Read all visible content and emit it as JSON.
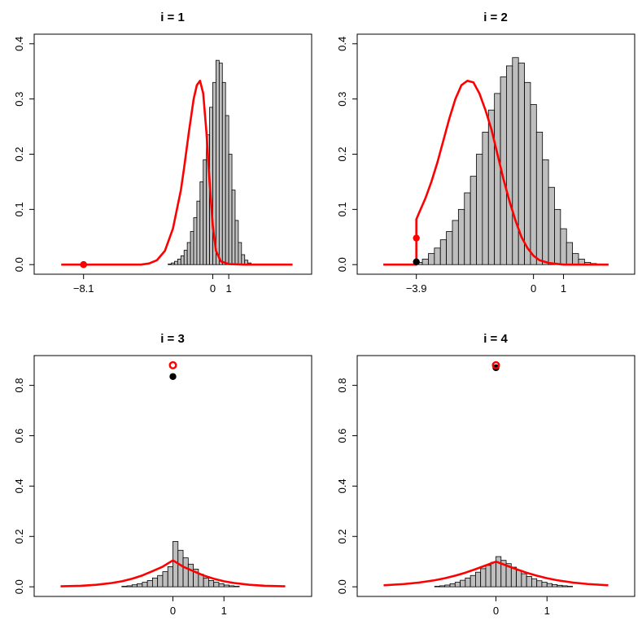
{
  "chart_data": [
    {
      "type": "bar",
      "title": "i = 1",
      "xlabel": "",
      "ylabel": "",
      "xlim": [
        -10.5,
        5.5
      ],
      "ylim": [
        0,
        0.4
      ],
      "yticks": [
        "0.0",
        "0.1",
        "0.2",
        "0.3",
        "0.4"
      ],
      "xticks": [
        {
          "value": -8.1,
          "label": "−8.1"
        },
        {
          "value": 0,
          "label": "0"
        },
        {
          "value": 1,
          "label": "1"
        }
      ],
      "histogram": {
        "start": -2.8,
        "binwidth": 0.2,
        "values": [
          0.001,
          0.003,
          0.006,
          0.01,
          0.016,
          0.026,
          0.04,
          0.06,
          0.085,
          0.115,
          0.15,
          0.19,
          0.235,
          0.285,
          0.33,
          0.37,
          0.365,
          0.33,
          0.27,
          0.2,
          0.135,
          0.08,
          0.04,
          0.018,
          0.008,
          0.003,
          0.001
        ]
      },
      "density_curve": {
        "x": [
          -9.5,
          -8.5,
          -7.5,
          -6.5,
          -5.5,
          -5.0,
          -4.5,
          -4.0,
          -3.5,
          -3.0,
          -2.5,
          -2.0,
          -1.8,
          -1.5,
          -1.2,
          -1.0,
          -0.8,
          -0.6,
          -0.4,
          -0.2,
          0.0,
          0.2,
          0.5,
          1.0,
          2.0,
          3.0,
          4.0,
          5.0
        ],
        "y": [
          0.0,
          0.0,
          0.0,
          0.0,
          0.0,
          0.0,
          0.0,
          0.002,
          0.008,
          0.025,
          0.065,
          0.135,
          0.175,
          0.24,
          0.3,
          0.325,
          0.333,
          0.31,
          0.24,
          0.15,
          0.07,
          0.025,
          0.006,
          0.001,
          0.0,
          0.0,
          0.0,
          0.0
        ],
        "color": "#ff0000"
      },
      "points": [
        {
          "x": -8.1,
          "y": 0.0,
          "color": "#000000",
          "style": "filled"
        },
        {
          "x": -8.1,
          "y": 0.0,
          "color": "#ff0000",
          "style": "filled"
        }
      ]
    },
    {
      "type": "bar",
      "title": "i = 2",
      "xlabel": "",
      "ylabel": "",
      "xlim": [
        -5.5,
        3.0
      ],
      "ylim": [
        0,
        0.4
      ],
      "yticks": [
        "0.0",
        "0.1",
        "0.2",
        "0.3",
        "0.4"
      ],
      "xticks": [
        {
          "value": -3.9,
          "label": "−3.9"
        },
        {
          "value": 0,
          "label": "0"
        },
        {
          "value": 1,
          "label": "1"
        }
      ],
      "histogram": {
        "start": -3.9,
        "binwidth": 0.2,
        "values": [
          0.004,
          0.01,
          0.02,
          0.03,
          0.045,
          0.06,
          0.08,
          0.1,
          0.13,
          0.16,
          0.2,
          0.24,
          0.28,
          0.31,
          0.34,
          0.36,
          0.375,
          0.365,
          0.33,
          0.29,
          0.24,
          0.19,
          0.14,
          0.1,
          0.065,
          0.04,
          0.02,
          0.01,
          0.004,
          0.002
        ]
      },
      "density_curve": {
        "x": [
          -5.0,
          -4.5,
          -4.2,
          -3.91,
          -3.9,
          -3.9,
          -3.8,
          -3.6,
          -3.4,
          -3.2,
          -3.0,
          -2.8,
          -2.6,
          -2.4,
          -2.2,
          -2.0,
          -1.8,
          -1.6,
          -1.4,
          -1.2,
          -1.0,
          -0.8,
          -0.6,
          -0.4,
          -0.2,
          0.0,
          0.2,
          0.5,
          1.0,
          1.5,
          2.0,
          2.5
        ],
        "y": [
          0.0,
          0.0,
          0.0,
          0.0,
          0.0,
          0.082,
          0.095,
          0.12,
          0.15,
          0.185,
          0.225,
          0.265,
          0.3,
          0.325,
          0.333,
          0.33,
          0.31,
          0.28,
          0.245,
          0.2,
          0.155,
          0.115,
          0.08,
          0.05,
          0.03,
          0.016,
          0.008,
          0.003,
          0.0,
          0.0,
          0.0,
          0.0
        ],
        "color": "#ff0000"
      },
      "points": [
        {
          "x": -3.9,
          "y": 0.005,
          "color": "#000000",
          "style": "filled"
        },
        {
          "x": -3.9,
          "y": 0.048,
          "color": "#ff0000",
          "style": "filled"
        }
      ]
    },
    {
      "type": "bar",
      "title": "i = 3",
      "xlabel": "",
      "ylabel": "",
      "xlim": [
        -2.5,
        2.5
      ],
      "ylim": [
        0,
        0.88
      ],
      "yticks": [
        "0.0",
        "0.2",
        "0.4",
        "0.6",
        "0.8"
      ],
      "xticks": [
        {
          "value": 0,
          "label": "0"
        },
        {
          "value": 1,
          "label": "1"
        }
      ],
      "histogram": {
        "start": -1.0,
        "binwidth": 0.1,
        "values": [
          0.002,
          0.004,
          0.008,
          0.012,
          0.018,
          0.025,
          0.035,
          0.045,
          0.06,
          0.08,
          0.18,
          0.145,
          0.115,
          0.09,
          0.07,
          0.05,
          0.035,
          0.025,
          0.018,
          0.012,
          0.007,
          0.004,
          0.002
        ]
      },
      "density_curve": {
        "x": [
          -2.2,
          -1.8,
          -1.5,
          -1.2,
          -1.0,
          -0.8,
          -0.6,
          -0.4,
          -0.2,
          0.0,
          0.2,
          0.4,
          0.6,
          0.8,
          1.0,
          1.2,
          1.5,
          1.8,
          2.2
        ],
        "y": [
          0.002,
          0.004,
          0.008,
          0.015,
          0.022,
          0.032,
          0.045,
          0.062,
          0.08,
          0.105,
          0.08,
          0.062,
          0.045,
          0.032,
          0.022,
          0.015,
          0.008,
          0.004,
          0.002
        ],
        "color": "#ff0000"
      },
      "points": [
        {
          "x": 0,
          "y": 0.835,
          "color": "#000000",
          "style": "filled"
        },
        {
          "x": 0,
          "y": 0.88,
          "color": "#ff0000",
          "style": "open"
        }
      ]
    },
    {
      "type": "bar",
      "title": "i = 4",
      "xlabel": "",
      "ylabel": "",
      "xlim": [
        -2.5,
        2.5
      ],
      "ylim": [
        0,
        0.88
      ],
      "yticks": [
        "0.0",
        "0.2",
        "0.4",
        "0.6",
        "0.8"
      ],
      "xticks": [
        {
          "value": 0,
          "label": "0"
        },
        {
          "value": 1,
          "label": "1"
        }
      ],
      "histogram": {
        "start": -1.2,
        "binwidth": 0.1,
        "values": [
          0.002,
          0.004,
          0.007,
          0.012,
          0.018,
          0.026,
          0.035,
          0.045,
          0.058,
          0.072,
          0.085,
          0.097,
          0.12,
          0.105,
          0.092,
          0.078,
          0.065,
          0.052,
          0.041,
          0.032,
          0.024,
          0.018,
          0.013,
          0.009,
          0.006,
          0.004,
          0.002
        ]
      },
      "density_curve": {
        "x": [
          -2.2,
          -1.8,
          -1.5,
          -1.2,
          -1.0,
          -0.8,
          -0.6,
          -0.4,
          -0.2,
          0.0,
          0.2,
          0.4,
          0.6,
          0.8,
          1.0,
          1.2,
          1.5,
          1.8,
          2.2
        ],
        "y": [
          0.006,
          0.011,
          0.017,
          0.026,
          0.034,
          0.044,
          0.056,
          0.07,
          0.085,
          0.1,
          0.085,
          0.07,
          0.056,
          0.044,
          0.034,
          0.026,
          0.017,
          0.011,
          0.006
        ],
        "color": "#ff0000"
      },
      "points": [
        {
          "x": 0,
          "y": 0.87,
          "color": "#000000",
          "style": "filled"
        },
        {
          "x": 0,
          "y": 0.88,
          "color": "#ff0000",
          "style": "open"
        }
      ]
    }
  ]
}
